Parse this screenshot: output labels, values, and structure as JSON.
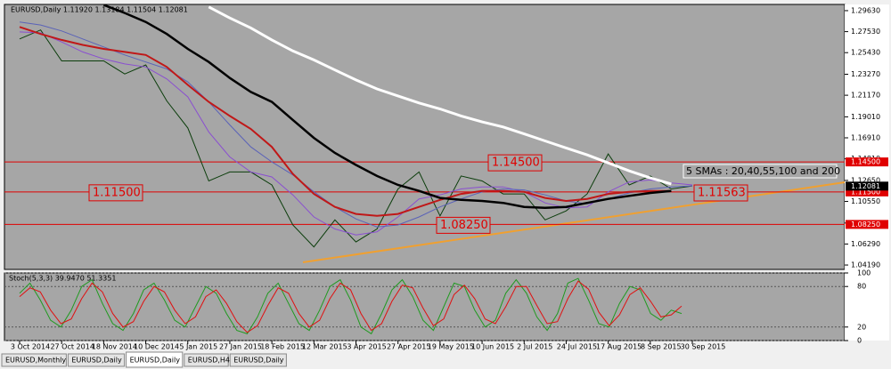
{
  "chart_data": [
    {
      "type": "line",
      "title": "EURUSD,Daily  1.11920 1.13184 1.11504 1.12081",
      "categories": [
        "3 Oct 2014",
        null,
        "27 Oct 2014",
        null,
        "18 Nov 2014",
        null,
        "10 Dec 2014",
        null,
        "5 Jan 2015",
        null,
        "27 Jan 2015",
        null,
        "18 Feb 2015",
        null,
        "12 Mar 2015",
        null,
        "3 Apr 2015",
        null,
        "27 Apr 2015",
        null,
        "19 May 2015",
        null,
        "10 Jun 2015",
        null,
        "2 Jul 2015",
        null,
        "24 Jul 2015",
        null,
        "17 Aug 2015",
        null,
        "8 Sep 2015",
        null,
        "30 Sep 2015"
      ],
      "series": [
        {
          "color": "#0b3d0b",
          "values": [
            1.268,
            1.277,
            1.246,
            1.246,
            1.246,
            1.233,
            1.242,
            1.206,
            1.179,
            1.126,
            1.135,
            1.135,
            1.122,
            1.082,
            1.06,
            1.087,
            1.065,
            1.078,
            1.118,
            1.135,
            1.091,
            1.131,
            1.126,
            1.113,
            1.113,
            1.087,
            1.096,
            1.113,
            1.153,
            1.122,
            1.131,
            1.118,
            1.121
          ]
        },
        {
          "color": "#8a4fd0",
          "values": [
            1.275,
            1.274,
            1.265,
            1.255,
            1.248,
            1.243,
            1.24,
            1.228,
            1.21,
            1.175,
            1.15,
            1.135,
            1.13,
            1.112,
            1.09,
            1.078,
            1.072,
            1.075,
            1.09,
            1.108,
            1.112,
            1.118,
            1.12,
            1.12,
            1.115,
            1.104,
            1.099,
            1.1,
            1.115,
            1.125,
            1.127,
            1.124,
            1.122
          ]
        },
        {
          "color": "#5a62b8",
          "values": [
            1.285,
            1.282,
            1.276,
            1.268,
            1.26,
            1.252,
            1.245,
            1.238,
            1.225,
            1.205,
            1.182,
            1.16,
            1.145,
            1.132,
            1.115,
            1.1,
            1.088,
            1.08,
            1.082,
            1.09,
            1.1,
            1.108,
            1.115,
            1.118,
            1.117,
            1.112,
            1.106,
            1.103,
            1.108,
            1.114,
            1.118,
            1.12,
            1.121
          ]
        },
        {
          "color": "#c01818",
          "values": [
            1.28,
            1.273,
            1.267,
            1.262,
            1.258,
            1.255,
            1.252,
            1.24,
            1.222,
            1.205,
            1.191,
            1.178,
            1.16,
            1.133,
            1.113,
            1.1,
            1.093,
            1.091,
            1.093,
            1.1,
            1.107,
            1.113,
            1.116,
            1.116,
            1.115,
            1.109,
            1.106,
            1.108,
            1.113,
            1.115,
            1.116,
            1.116,
            null
          ]
        },
        {
          "color": "#000000",
          "values": [
            null,
            null,
            null,
            null,
            1.302,
            1.294,
            1.285,
            1.273,
            1.258,
            1.245,
            1.229,
            1.215,
            1.205,
            1.187,
            1.169,
            1.154,
            1.142,
            1.131,
            1.122,
            1.116,
            1.109,
            1.107,
            1.106,
            1.104,
            1.1,
            1.099,
            1.1,
            1.104,
            1.108,
            1.111,
            1.114,
            1.116,
            null
          ]
        },
        {
          "color": "#ffffff",
          "values": [
            null,
            null,
            null,
            null,
            null,
            null,
            null,
            null,
            null,
            1.3,
            1.289,
            1.279,
            1.267,
            1.256,
            1.247,
            1.237,
            1.227,
            1.218,
            1.211,
            1.204,
            1.198,
            1.191,
            1.185,
            1.18,
            1.173,
            1.166,
            1.159,
            1.152,
            1.144,
            1.136,
            1.129,
            1.123,
            null
          ]
        }
      ],
      "ylim": [
        1.0375,
        1.3025
      ],
      "yticks": [
        {
          "value": 1.2963,
          "label": "1.29630"
        },
        {
          "value": 1.2753,
          "label": "1.27530"
        },
        {
          "value": 1.2543,
          "label": "1.25430"
        },
        {
          "value": 1.2327,
          "label": "1.23270"
        },
        {
          "value": 1.2117,
          "label": "1.21170"
        },
        {
          "value": 1.1901,
          "label": "1.19010"
        },
        {
          "value": 1.1691,
          "label": "1.16910"
        },
        {
          "value": 1.1481,
          "label": "1.14810"
        },
        {
          "value": 1.1265,
          "label": "1.12650"
        },
        {
          "value": 1.1055,
          "label": "1.10550"
        },
        {
          "value": 1.0839,
          "label": "1.08390"
        },
        {
          "value": 1.0629,
          "label": "1.06290"
        },
        {
          "value": 1.0419,
          "label": "1.04190"
        }
      ],
      "levels": [
        {
          "value": 1.145,
          "label": "1.14500"
        },
        {
          "value": 1.115,
          "label": "1.11500"
        },
        {
          "value": 1.0825,
          "label": "1.08250"
        }
      ],
      "level_color": "#e00000",
      "last_price": {
        "value": 1.12081,
        "label": "1.12081"
      },
      "annotations": [
        "5 SMAs : 20,40,55,100 and 200",
        "1.11563"
      ],
      "tabs": [
        "EURUSD,Monthly",
        "EURUSD,Daily",
        "EURUSD,Daily",
        "EURUSD,H4",
        "EURUSD,Daily"
      ]
    },
    {
      "type": "line",
      "title": "Stoch(5,3,3) 39.9470 51.3351",
      "series": [
        {
          "color": "#1f9a1f",
          "values": [
            70,
            85,
            60,
            30,
            20,
            45,
            80,
            90,
            55,
            25,
            15,
            40,
            75,
            85,
            60,
            30,
            20,
            50,
            80,
            70,
            40,
            15,
            10,
            35,
            70,
            85,
            55,
            25,
            15,
            45,
            80,
            90,
            60,
            20,
            10,
            40,
            75,
            90,
            65,
            30,
            15,
            50,
            85,
            80,
            45,
            20,
            30,
            70,
            90,
            70,
            35,
            15,
            40,
            85,
            92,
            60,
            25,
            20,
            55,
            80,
            75,
            40,
            30,
            45,
            40
          ]
        },
        {
          "color": "#e01010",
          "values": [
            65,
            78,
            72,
            45,
            25,
            32,
            62,
            85,
            72,
            40,
            20,
            28,
            58,
            80,
            72,
            45,
            25,
            35,
            65,
            75,
            55,
            28,
            12,
            22,
            52,
            78,
            70,
            40,
            20,
            30,
            62,
            85,
            75,
            40,
            15,
            25,
            58,
            82,
            78,
            48,
            22,
            32,
            68,
            82,
            62,
            32,
            25,
            50,
            80,
            80,
            52,
            25,
            28,
            62,
            88,
            76,
            42,
            22,
            38,
            68,
            78,
            58,
            35,
            38,
            51
          ]
        }
      ],
      "ylim": [
        0,
        100
      ],
      "yticks": [
        100,
        80,
        20,
        0
      ]
    }
  ]
}
